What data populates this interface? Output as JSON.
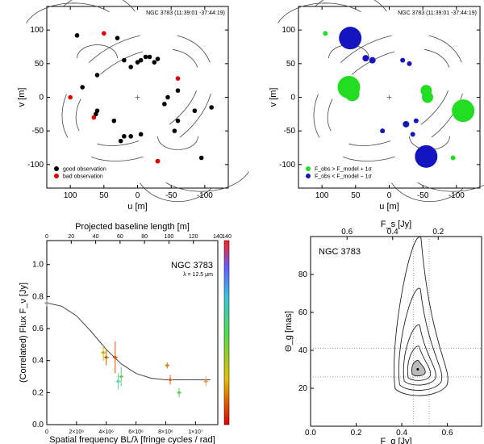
{
  "panels": {
    "uv_left": {
      "header": "NGC 3783 (11:39:01 -37:44:19)",
      "xlabel": "u [m]",
      "ylabel": "v [m]",
      "xticks": [
        "100",
        "50",
        "0",
        "-50",
        "-100"
      ],
      "yticks": [
        "100",
        "50",
        "0",
        "-50",
        "-100"
      ],
      "legend": [
        "good observation",
        "bad observation"
      ],
      "colors": {
        "good": "#000000",
        "bad": "#e00000"
      }
    },
    "uv_right": {
      "header": "NGC 3783 (11:39:01 -37:44:19)",
      "xlabel": "u [m]",
      "ylabel": "v [m]",
      "xticks": [
        "100",
        "50",
        "0",
        "-50",
        "-100"
      ],
      "yticks": [
        "100",
        "50",
        "0",
        "-50",
        "-100"
      ],
      "legend": [
        "F_obs > F_model + 1σ",
        "F_obs < F_model − 1σ"
      ],
      "colors": {
        "above": "#22dd22",
        "below": "#1515c0"
      }
    },
    "visibility": {
      "top_label": "Projected baseline length [m]",
      "xlabel": "Spatial frequency BL/λ [fringe cycles / rad]",
      "ylabel": "(Correlated) Flux F_ν [Jy]",
      "object": "NGC 3783",
      "wavelength": "λ = 12.5 μm",
      "top_ticks": [
        "0",
        "20",
        "40",
        "60",
        "80",
        "100",
        "120",
        "140"
      ],
      "bottom_ticks": [
        "0",
        "2×10⁶",
        "4×10⁶",
        "6×10⁶",
        "8×10⁶",
        "1×10⁷"
      ],
      "yticks": [
        "0.0",
        "0.2",
        "0.4",
        "0.6",
        "0.8",
        "1.0"
      ]
    },
    "contour": {
      "top_label": "F_s [Jy]",
      "xlabel": "F_g [Jy]",
      "ylabel": "Θ_g [mas]",
      "object": "NGC 3783",
      "top_ticks": [
        "0.6",
        "0.4",
        "0.2"
      ],
      "xticks": [
        "0.0",
        "0.2",
        "0.4",
        "0.6"
      ],
      "yticks": [
        "20",
        "40",
        "60",
        "80"
      ]
    }
  },
  "chart_data": [
    {
      "type": "scatter",
      "title": "NGC 3783 (11:39:01 -37:44:19)",
      "xlabel": "u [m]",
      "ylabel": "v [m]",
      "xlim": [
        135,
        -135
      ],
      "ylim": [
        -135,
        135
      ],
      "series": [
        {
          "name": "good observation",
          "x": [
            90,
            82,
            60,
            35,
            30,
            20,
            10,
            0,
            -5,
            -12,
            -18,
            -25,
            -30,
            -55,
            -60,
            -85,
            -95,
            -110,
            -60,
            -45,
            -30,
            -40,
            -5,
            10,
            20,
            25,
            60,
            62
          ],
          "y": [
            92,
            15,
            33,
            -35,
            88,
            55,
            45,
            52,
            55,
            60,
            60,
            52,
            57,
            -50,
            -35,
            -20,
            -90,
            -15,
            10,
            0,
            -95,
            -10,
            -55,
            -58,
            -58,
            -65,
            -20,
            -25
          ]
        },
        {
          "name": "bad observation",
          "x": [
            50,
            45,
            100,
            -10,
            -30,
            -45,
            65,
            -60,
            -60
          ],
          "y": [
            95,
            -42,
            5,
            -38,
            -95,
            -5,
            -28,
            30,
            25
          ],
          "render_x": [
            50,
            100,
            65,
            -60,
            -30
          ],
          "render_y": [
            95,
            0,
            -30,
            28,
            -95
          ]
        }
      ]
    },
    {
      "type": "scatter",
      "title": "NGC 3783 (11:39:01 -37:44:19)",
      "xlabel": "u [m]",
      "ylabel": "v [m]",
      "xlim": [
        135,
        -135
      ],
      "ylim": [
        -135,
        135
      ],
      "series": [
        {
          "name": "F_obs > F_model + 1σ",
          "x": [
            95,
            60,
            55,
            -55,
            -57,
            -110,
            -95
          ],
          "y": [
            95,
            15,
            5,
            10,
            0,
            -20,
            -90
          ],
          "sizes": [
            3,
            14,
            9,
            7,
            7,
            14,
            3
          ]
        },
        {
          "name": "F_obs < F_model − 1σ",
          "x": [
            58,
            -55,
            35,
            25,
            -20,
            -30,
            -25,
            -40,
            -35,
            10
          ],
          "y": [
            88,
            -88,
            58,
            55,
            55,
            50,
            -40,
            -35,
            -55,
            -50
          ],
          "sizes": [
            14,
            14,
            4,
            4,
            3,
            3,
            4,
            3,
            3,
            3
          ]
        }
      ]
    },
    {
      "type": "scatter",
      "title": "",
      "xlabel": "Spatial frequency BL/λ [fringe cycles / rad]",
      "ylabel": "(Correlated) Flux F_ν [Jy]",
      "xlim": [
        0,
        11500000.0
      ],
      "ylim": [
        0,
        1.15
      ],
      "model_curve": {
        "x": [
          0,
          1000000.0,
          2000000.0,
          3000000.0,
          4000000.0,
          5000000.0,
          6000000.0,
          7000000.0,
          8000000.0,
          9000000.0,
          10000000.0,
          11000000.0
        ],
        "y": [
          0.76,
          0.74,
          0.68,
          0.58,
          0.47,
          0.38,
          0.32,
          0.29,
          0.28,
          0.28,
          0.28,
          0.28
        ]
      },
      "points": {
        "x": [
          0,
          3800000.0,
          4000000.0,
          4600000.0,
          4800000.0,
          5000000.0,
          8100000.0,
          8300000.0,
          8900000.0,
          10700000.0
        ],
        "y": [
          0.76,
          0.45,
          0.42,
          0.42,
          0.27,
          0.3,
          0.37,
          0.28,
          0.2,
          0.27
        ],
        "err": [
          0.02,
          0.05,
          0.05,
          0.1,
          0.05,
          0.06,
          0.02,
          0.03,
          0.03,
          0.03
        ],
        "colors": [
          "#999999",
          "#c8b400",
          "#c86400",
          "#e05000",
          "#55ddaa",
          "#66cc66",
          "#e08020",
          "#e06020",
          "#66cc66",
          "#e8a060"
        ]
      },
      "colorbar": {
        "min": 0,
        "max": 140
      }
    },
    {
      "type": "contour",
      "title": "NGC 3783",
      "xlabel": "F_g [Jy]",
      "ylabel": "Θ_g [mas]",
      "xlim": [
        0.0,
        0.75
      ],
      "ylim": [
        0,
        100
      ],
      "best_fit": {
        "x": 0.47,
        "y": 30
      },
      "dotted_lines": {
        "x": [
          0.45,
          0.52
        ],
        "y": [
          26,
          41
        ]
      }
    }
  ]
}
